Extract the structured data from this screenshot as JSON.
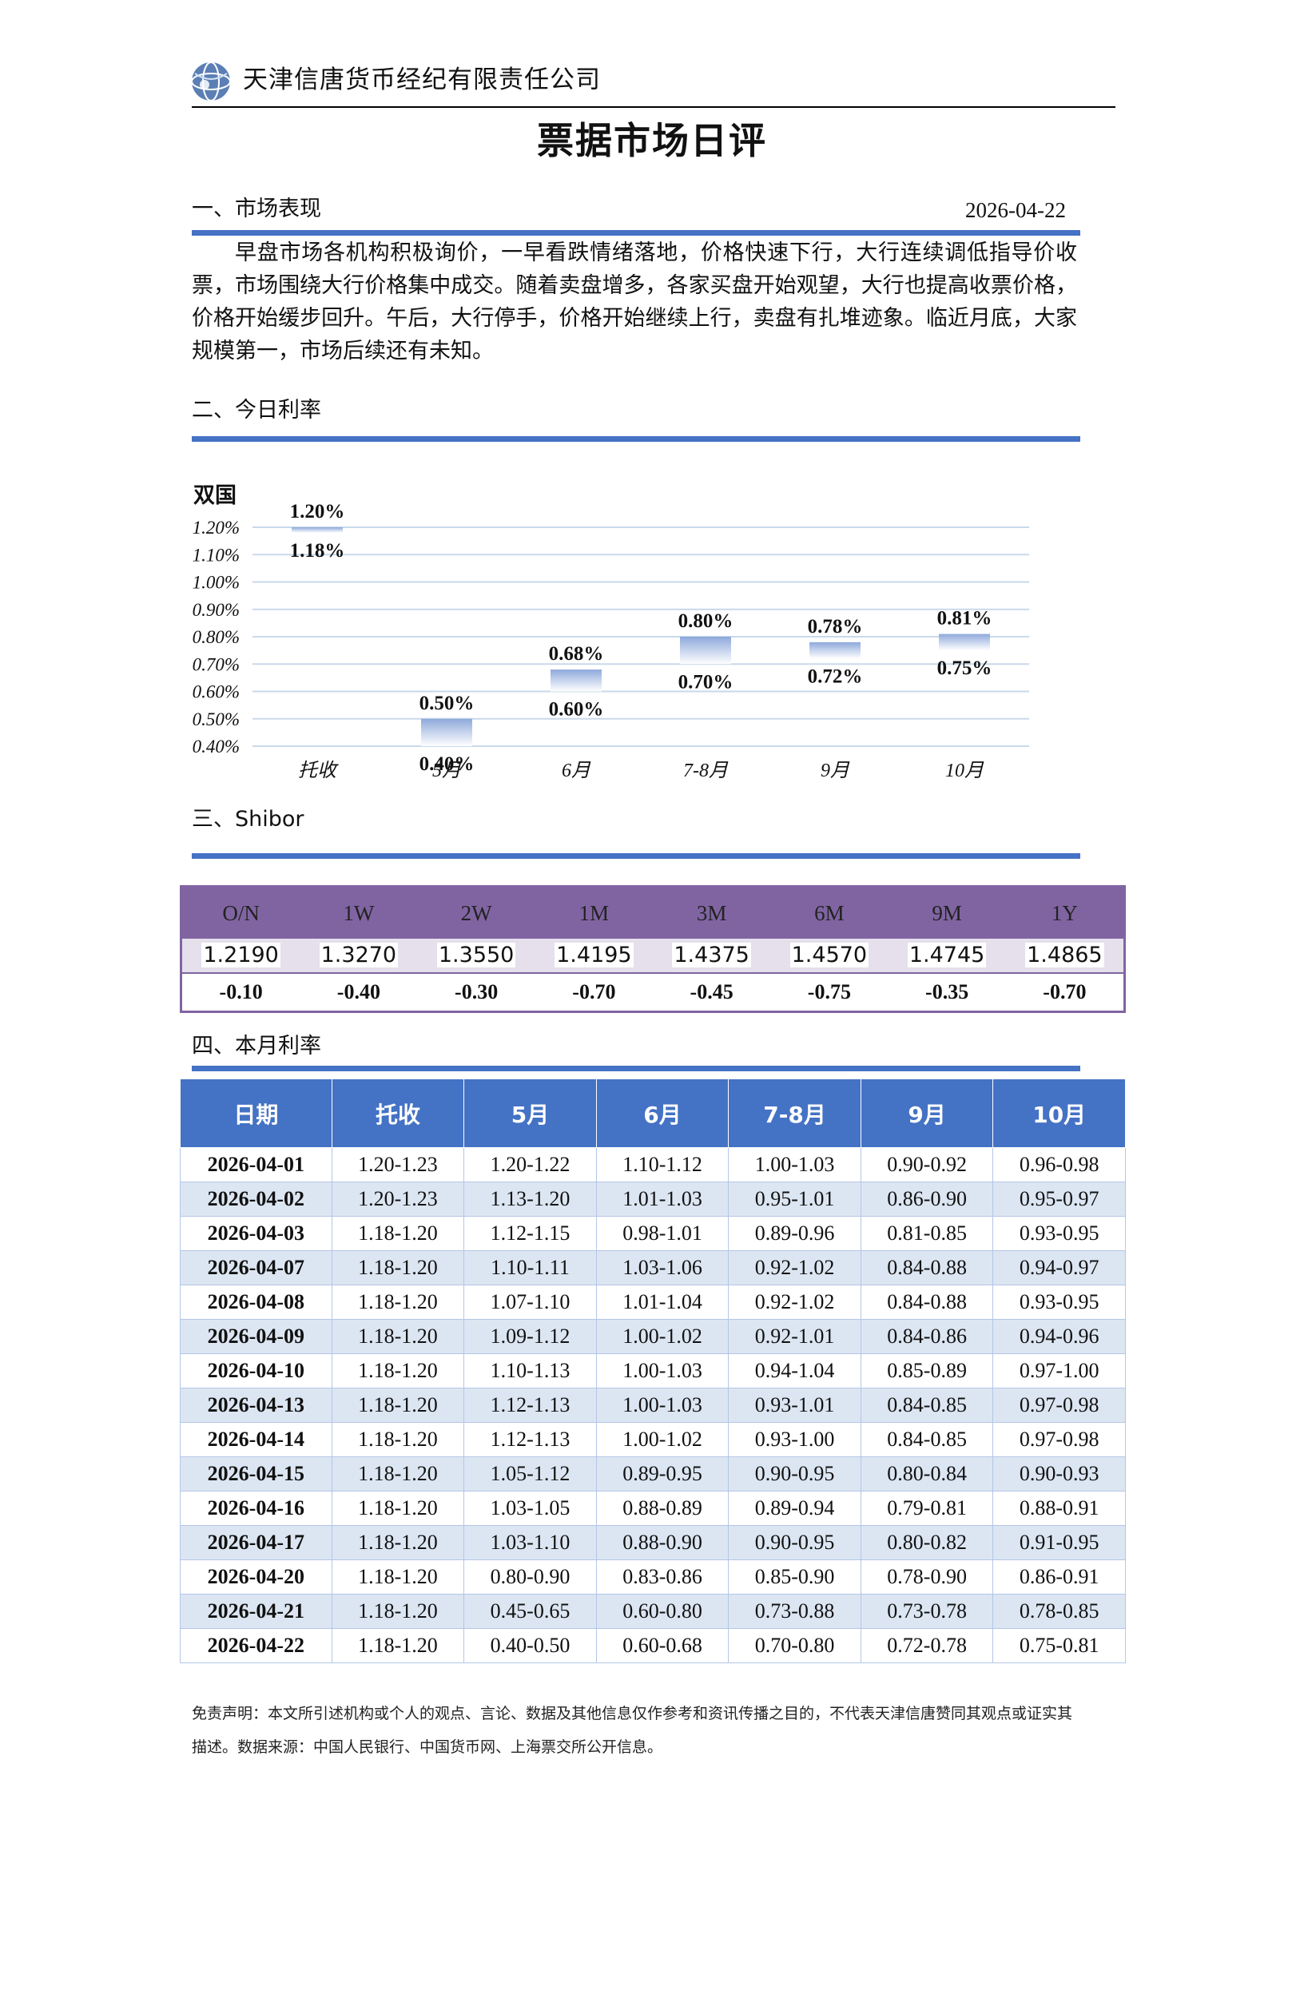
{
  "header": {
    "company": "天津信唐货币经纪有限责任公司",
    "title": "票据市场日评",
    "logo_icon": "globe-logo-icon",
    "accent": "#4472C4"
  },
  "section1": {
    "title": "一、市场表现",
    "date": "2026-04-22",
    "summary": "早盘市场各机构积极询价，一早看跌情绪落地，价格快速下行，大行连续调低指导价收票，市场围绕大行价格集中成交。随着卖盘增多，各家买盘开始观望，大行也提高收票价格，价格开始缓步回升。午后，大行停手，价格开始继续上行，卖盘有扎堆迹象。临近月底，大家规模第一，市场后续还有未知。"
  },
  "section2": {
    "title": "二、今日利率"
  },
  "chart_data": {
    "type": "bar",
    "title": "双国",
    "categories": [
      "托收",
      "5月",
      "6月",
      "7-8月",
      "9月",
      "10月"
    ],
    "series": [
      {
        "low": [
          1.18,
          0.4,
          0.6,
          0.7,
          0.72,
          0.75
        ],
        "high": [
          1.2,
          0.5,
          0.68,
          0.8,
          0.78,
          0.81
        ]
      }
    ],
    "high_labels": [
      "1.20%",
      "0.50%",
      "0.68%",
      "0.80%",
      "0.78%",
      "0.81%"
    ],
    "low_labels": [
      "1.18%",
      "0.40%",
      "0.60%",
      "0.70%",
      "0.72%",
      "0.75%"
    ],
    "yticks": [
      "0.40%",
      "0.50%",
      "0.60%",
      "0.70%",
      "0.80%",
      "0.90%",
      "1.00%",
      "1.10%",
      "1.20%"
    ],
    "ylim": [
      0.4,
      1.2
    ],
    "grid": true,
    "colors": {
      "bar_top": "#8EA9DB",
      "bar_bottom": "#FFFFFF",
      "grid": "#C9D9EA"
    }
  },
  "section3": {
    "title": "三、Shibor"
  },
  "shibor": {
    "terms": [
      "O/N",
      "1W",
      "2W",
      "1M",
      "3M",
      "6M",
      "9M",
      "1Y"
    ],
    "rates": [
      "1.2190",
      "1.3270",
      "1.3550",
      "1.4195",
      "1.4375",
      "1.4570",
      "1.4745",
      "1.4865"
    ],
    "changes": [
      "-0.10",
      "-0.40",
      "-0.30",
      "-0.70",
      "-0.45",
      "-0.75",
      "-0.35",
      "-0.70"
    ],
    "color": "#8064A2"
  },
  "section4": {
    "title": "四、本月利率"
  },
  "monthly": {
    "headers": [
      "日期",
      "托收",
      "5月",
      "6月",
      "7-8月",
      "9月",
      "10月"
    ],
    "rows": [
      [
        "2026-04-01",
        "1.20-1.23",
        "1.20-1.22",
        "1.10-1.12",
        "1.00-1.03",
        "0.90-0.92",
        "0.96-0.98"
      ],
      [
        "2026-04-02",
        "1.20-1.23",
        "1.13-1.20",
        "1.01-1.03",
        "0.95-1.01",
        "0.86-0.90",
        "0.95-0.97"
      ],
      [
        "2026-04-03",
        "1.18-1.20",
        "1.12-1.15",
        "0.98-1.01",
        "0.89-0.96",
        "0.81-0.85",
        "0.93-0.95"
      ],
      [
        "2026-04-07",
        "1.18-1.20",
        "1.10-1.11",
        "1.03-1.06",
        "0.92-1.02",
        "0.84-0.88",
        "0.94-0.97"
      ],
      [
        "2026-04-08",
        "1.18-1.20",
        "1.07-1.10",
        "1.01-1.04",
        "0.92-1.02",
        "0.84-0.88",
        "0.93-0.95"
      ],
      [
        "2026-04-09",
        "1.18-1.20",
        "1.09-1.12",
        "1.00-1.02",
        "0.92-1.01",
        "0.84-0.86",
        "0.94-0.96"
      ],
      [
        "2026-04-10",
        "1.18-1.20",
        "1.10-1.13",
        "1.00-1.03",
        "0.94-1.04",
        "0.85-0.89",
        "0.97-1.00"
      ],
      [
        "2026-04-13",
        "1.18-1.20",
        "1.12-1.13",
        "1.00-1.03",
        "0.93-1.01",
        "0.84-0.85",
        "0.97-0.98"
      ],
      [
        "2026-04-14",
        "1.18-1.20",
        "1.12-1.13",
        "1.00-1.02",
        "0.93-1.00",
        "0.84-0.85",
        "0.97-0.98"
      ],
      [
        "2026-04-15",
        "1.18-1.20",
        "1.05-1.12",
        "0.89-0.95",
        "0.90-0.95",
        "0.80-0.84",
        "0.90-0.93"
      ],
      [
        "2026-04-16",
        "1.18-1.20",
        "1.03-1.05",
        "0.88-0.89",
        "0.89-0.94",
        "0.79-0.81",
        "0.88-0.91"
      ],
      [
        "2026-04-17",
        "1.18-1.20",
        "1.03-1.10",
        "0.88-0.90",
        "0.90-0.95",
        "0.80-0.82",
        "0.91-0.95"
      ],
      [
        "2026-04-20",
        "1.18-1.20",
        "0.80-0.90",
        "0.83-0.86",
        "0.85-0.90",
        "0.78-0.90",
        "0.86-0.91"
      ],
      [
        "2026-04-21",
        "1.18-1.20",
        "0.45-0.65",
        "0.60-0.80",
        "0.73-0.88",
        "0.73-0.78",
        "0.78-0.85"
      ],
      [
        "2026-04-22",
        "1.18-1.20",
        "0.40-0.50",
        "0.60-0.68",
        "0.70-0.80",
        "0.72-0.78",
        "0.75-0.81"
      ]
    ]
  },
  "disclaimer": "免责声明：本文所引述机构或个人的观点、言论、数据及其他信息仅作参考和资讯传播之目的，不代表天津信唐赞同其观点或证实其描述。数据来源：中国人民银行、中国货币网、上海票交所公开信息。"
}
